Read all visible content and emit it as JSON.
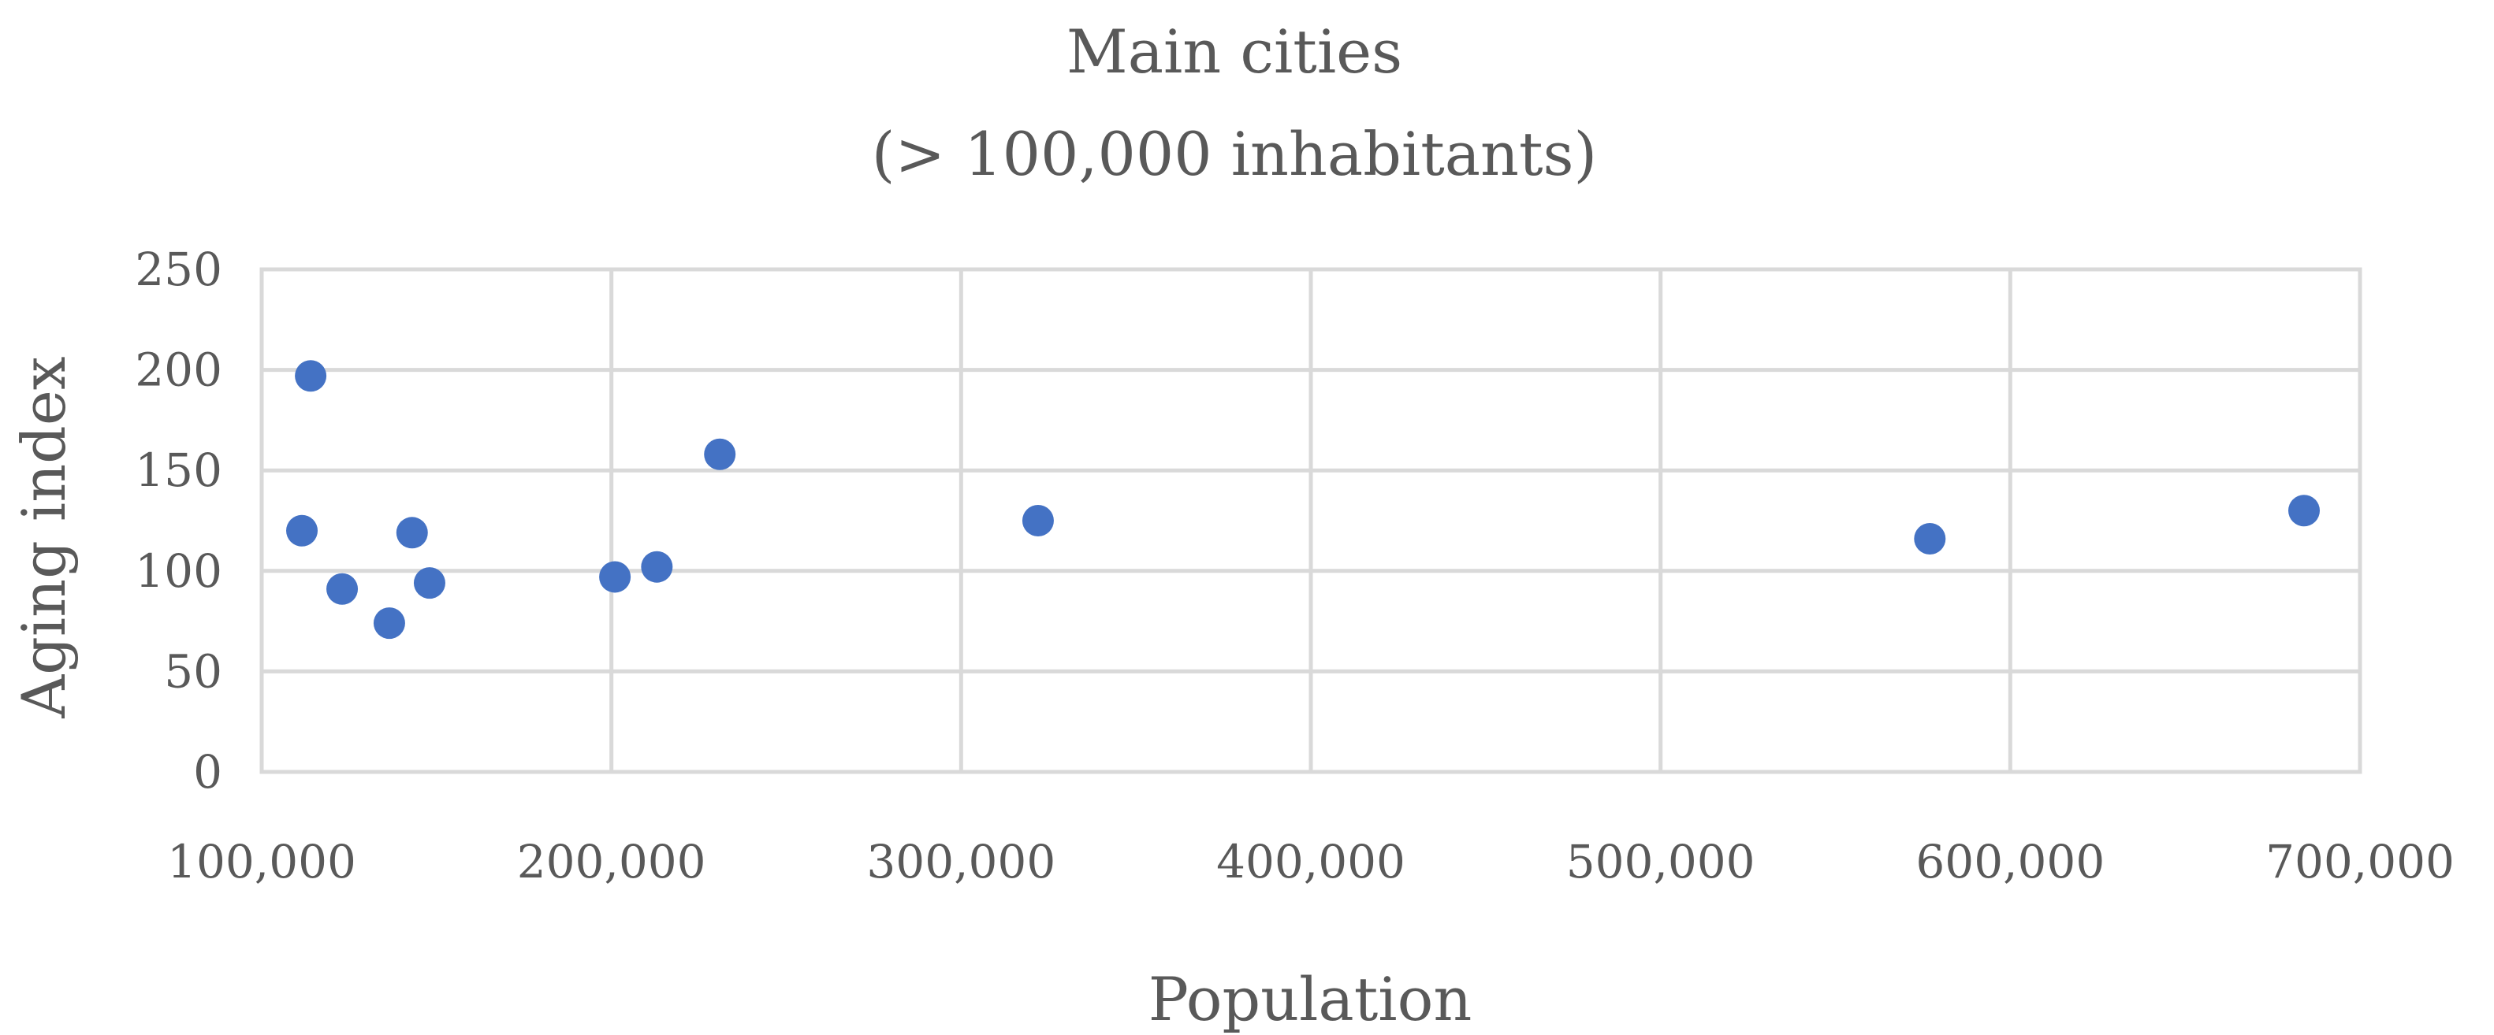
{
  "chart_data": {
    "type": "scatter",
    "title": "Main cities",
    "subtitle": "(> 100,000 inhabitants)",
    "xlabel": "Population",
    "ylabel": "Aging index",
    "xlim": [
      100000,
      700000
    ],
    "ylim": [
      0,
      250
    ],
    "xticks": [
      100000,
      200000,
      300000,
      400000,
      500000,
      600000,
      700000
    ],
    "xtick_labels": [
      "100,000",
      "200,000",
      "300,000",
      "400,000",
      "500,000",
      "600,000",
      "700,000"
    ],
    "yticks": [
      0,
      50,
      100,
      150,
      200,
      250
    ],
    "ytick_labels": [
      "0",
      "50",
      "100",
      "150",
      "200",
      "250"
    ],
    "grid": true,
    "legend": "none",
    "marker_color": "#4472c4",
    "points": [
      {
        "x": 111500,
        "y": 120
      },
      {
        "x": 114000,
        "y": 197
      },
      {
        "x": 123000,
        "y": 91
      },
      {
        "x": 136500,
        "y": 74
      },
      {
        "x": 143000,
        "y": 119
      },
      {
        "x": 148000,
        "y": 94
      },
      {
        "x": 201000,
        "y": 97
      },
      {
        "x": 213000,
        "y": 102
      },
      {
        "x": 231000,
        "y": 158
      },
      {
        "x": 322000,
        "y": 125
      },
      {
        "x": 577000,
        "y": 116
      },
      {
        "x": 684000,
        "y": 130
      }
    ]
  }
}
